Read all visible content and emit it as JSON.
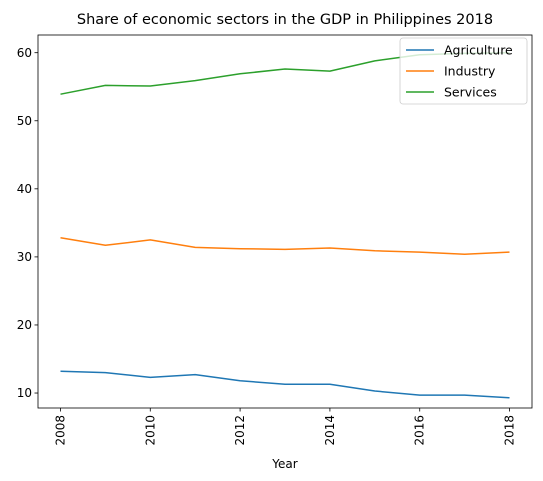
{
  "chart_data": {
    "type": "line",
    "title": "Share of economic sectors in the GDP in Philippines 2018",
    "xlabel": "Year",
    "ylabel": "",
    "x": [
      2008,
      2009,
      2010,
      2011,
      2012,
      2013,
      2014,
      2015,
      2016,
      2017,
      2018
    ],
    "xticks": [
      2008,
      2010,
      2012,
      2014,
      2016,
      2018
    ],
    "yticks": [
      10,
      20,
      30,
      40,
      50,
      60
    ],
    "xlim": [
      2007.5,
      2018.5
    ],
    "ylim": [
      7.8,
      62.6
    ],
    "legend_position": "top-right",
    "grid": false,
    "series": [
      {
        "name": "Agriculture",
        "color": "#1f77b4",
        "values": [
          13.2,
          13.0,
          12.3,
          12.7,
          11.8,
          11.3,
          11.3,
          10.3,
          9.7,
          9.7,
          9.3
        ]
      },
      {
        "name": "Industry",
        "color": "#ff7f0e",
        "values": [
          32.8,
          31.7,
          32.5,
          31.4,
          31.2,
          31.1,
          31.3,
          30.9,
          30.7,
          30.4,
          30.7
        ]
      },
      {
        "name": "Services",
        "color": "#2ca02c",
        "values": [
          53.9,
          55.2,
          55.1,
          55.9,
          56.9,
          57.6,
          57.3,
          58.8,
          59.7,
          59.9,
          60.0
        ]
      }
    ]
  }
}
